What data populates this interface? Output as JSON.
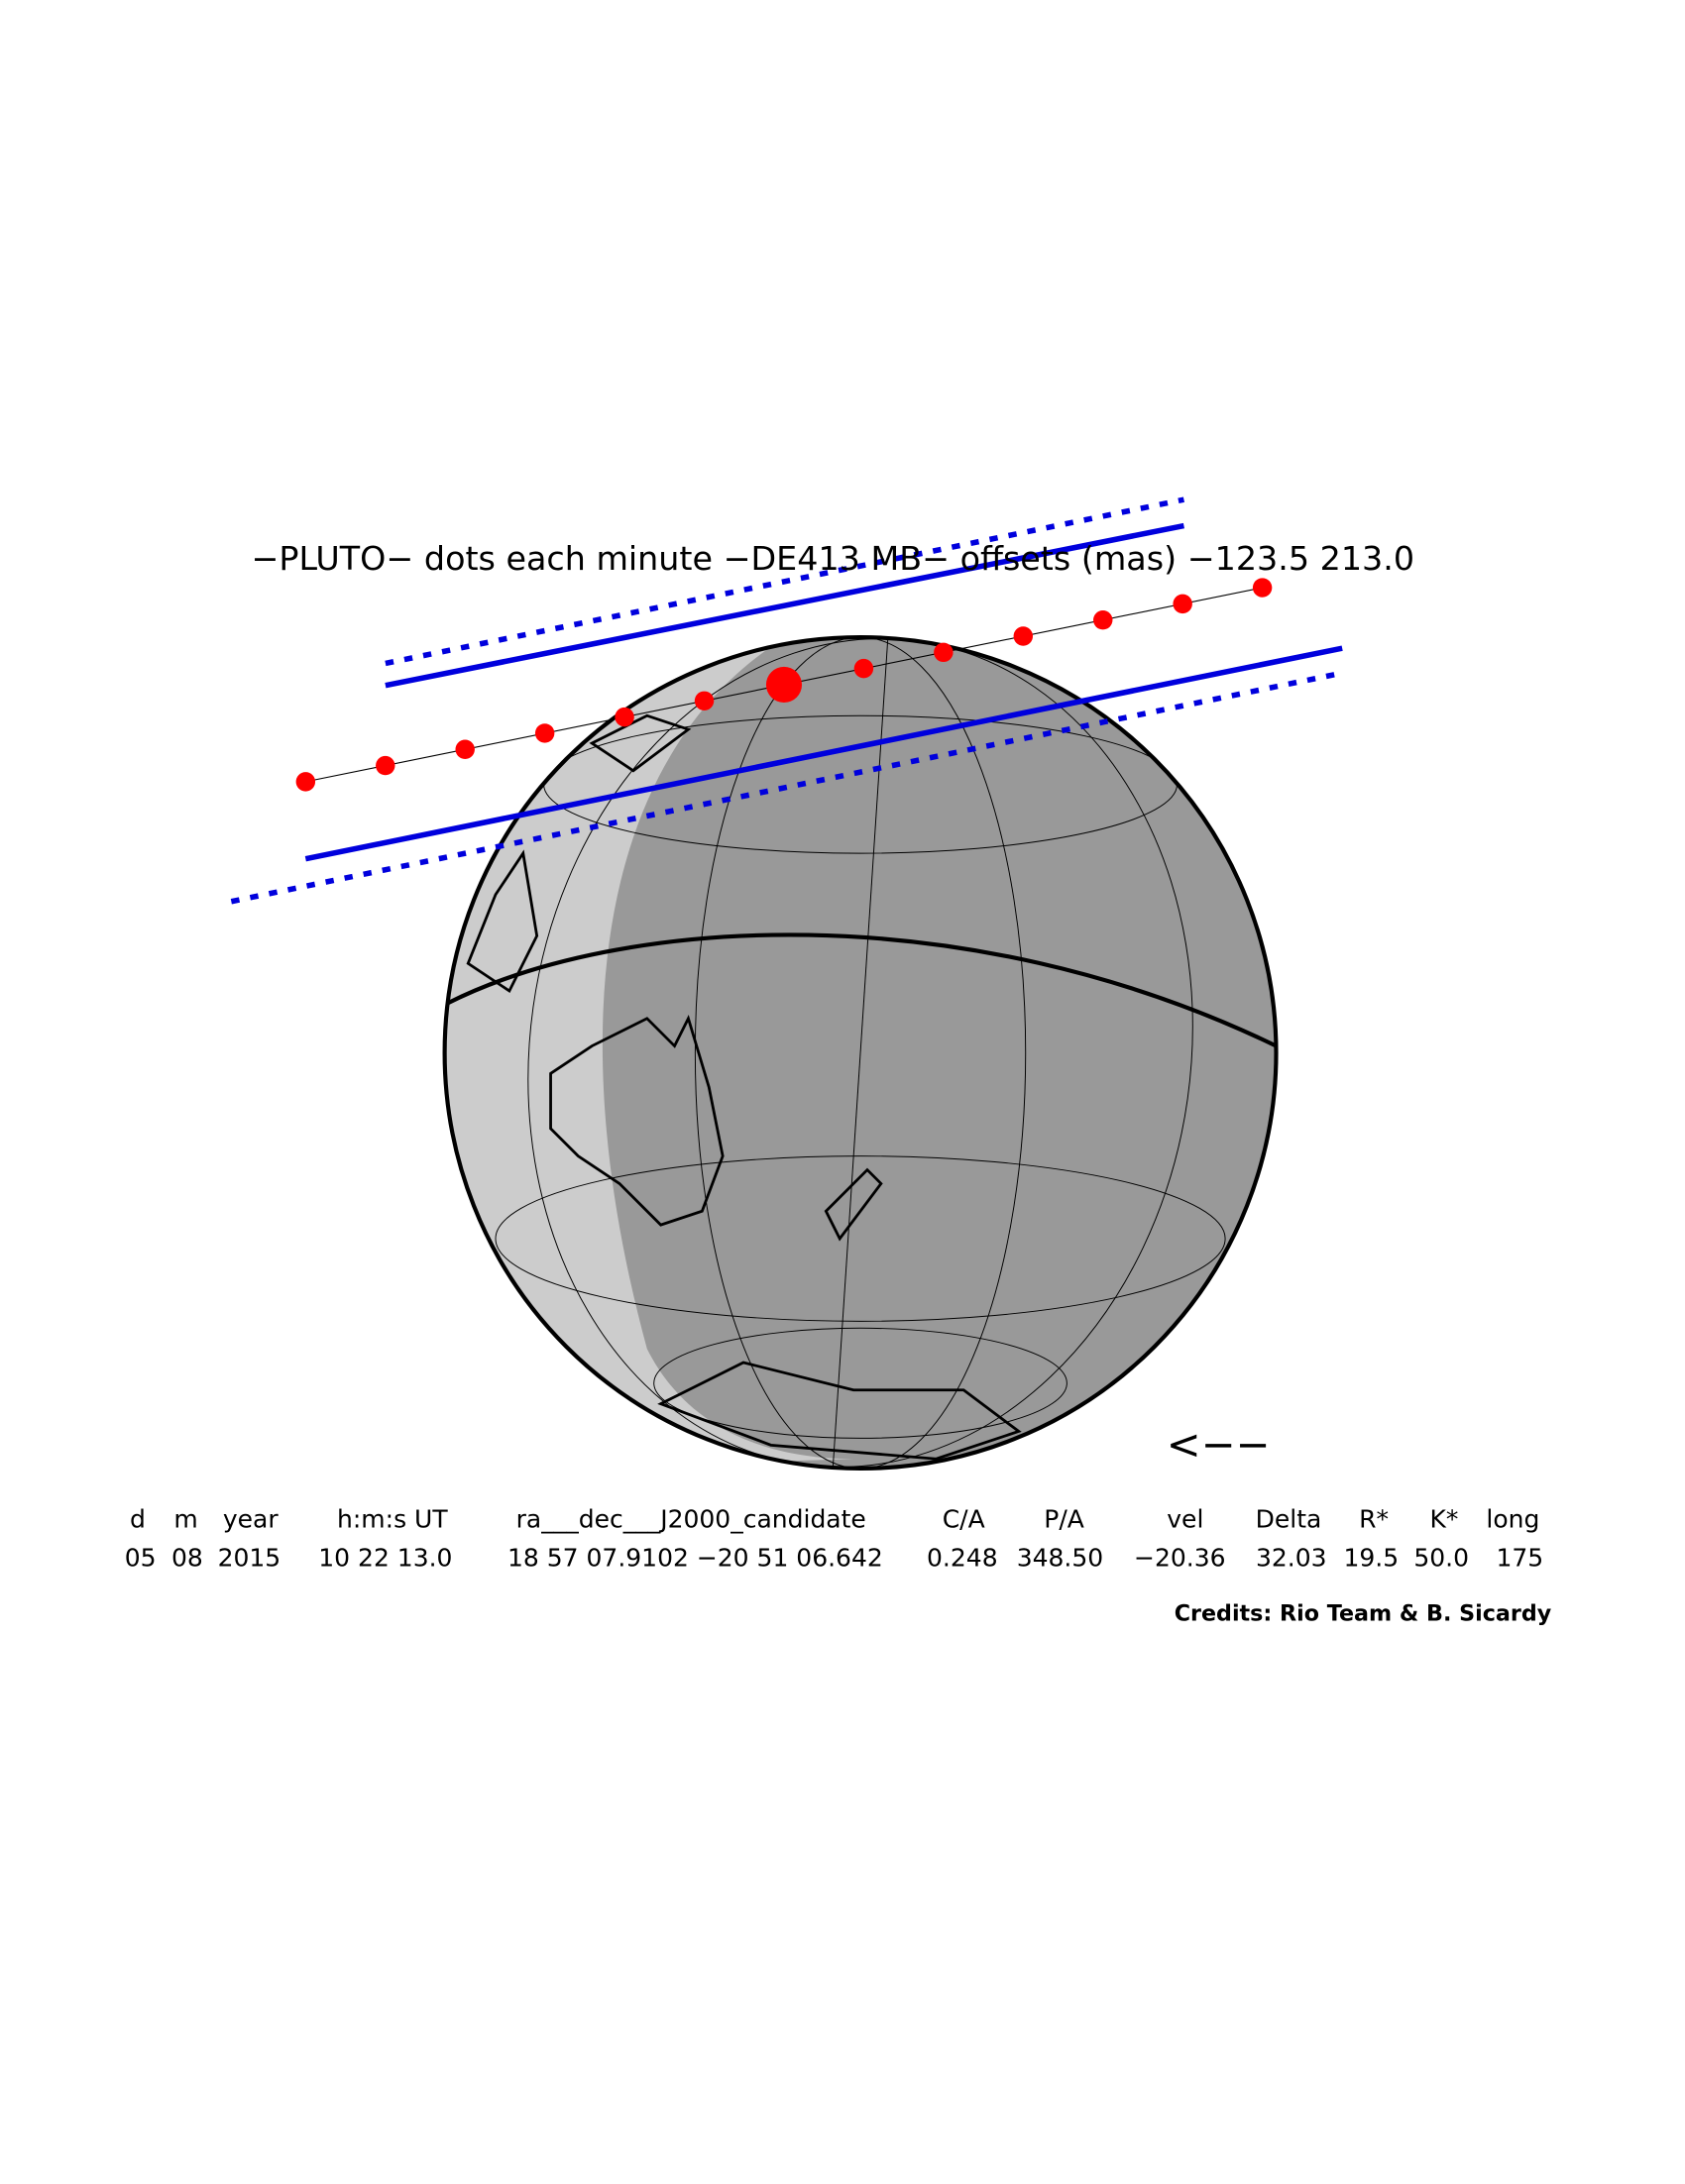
{
  "header": {
    "title": "−PLUTO− dots each minute −DE413 MB− offsets (mas) −123.5   213.0"
  },
  "table": {
    "headers": [
      "d",
      "m",
      "year",
      "h:m:s UT",
      "ra___dec___J2000_candidate",
      "C/A",
      "P/A",
      "vel",
      "Delta",
      "R*",
      "K*",
      "long"
    ],
    "values": [
      "05",
      "08",
      "2015",
      "10 22 13.0",
      "18 57 07.9102 −20 51 06.642",
      "0.248",
      "348.50",
      "−20.36",
      "32.03",
      "19.5",
      "50.0",
      "175"
    ]
  },
  "credits": "Credits: Rio Team & B. Sicardy",
  "direction": "<−−"
}
